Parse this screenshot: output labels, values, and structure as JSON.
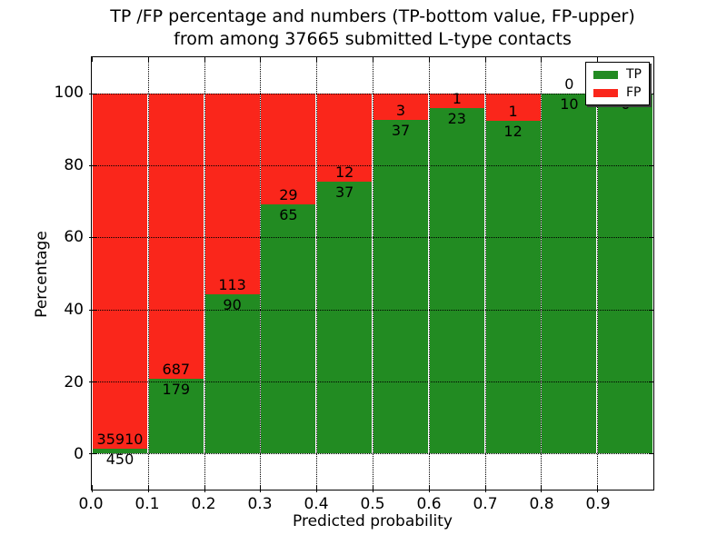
{
  "title": {
    "line1": "TP /FP percentage and numbers (TP-bottom value, FP-upper)",
    "line2": "from among 37665 submitted L-type contacts"
  },
  "axes": {
    "xlabel": "Predicted probability",
    "ylabel": "Percentage"
  },
  "legend": {
    "items": [
      {
        "label": "TP",
        "color": "#228b22"
      },
      {
        "label": "FP",
        "color": "#fa261b"
      }
    ]
  },
  "colors": {
    "tp": "#228b22",
    "fp": "#fa261b",
    "grid": "#000000",
    "background": "#ffffff"
  },
  "chart_data": {
    "type": "bar",
    "stacked": true,
    "title": "TP /FP percentage and numbers (TP-bottom value, FP-upper) from among 37665 submitted L-type contacts",
    "xlabel": "Predicted probability",
    "ylabel": "Percentage",
    "total_contacts": 37665,
    "grid": "dotted",
    "legend_position": "upper right",
    "xlim": [
      0,
      1
    ],
    "ylim": [
      -10,
      110
    ],
    "x_tick_values": [
      0,
      0.1,
      0.2,
      0.3,
      0.4,
      0.5,
      0.6,
      0.7,
      0.8,
      0.9
    ],
    "x_tick_labels": [
      "0.0",
      "0.1",
      "0.2",
      "0.3",
      "0.4",
      "0.5",
      "0.6",
      "0.7",
      "0.8",
      "0.9"
    ],
    "y_tick_values": [
      0,
      20,
      40,
      60,
      80,
      100
    ],
    "y_tick_labels": [
      "0",
      "20",
      "40",
      "60",
      "80",
      "100"
    ],
    "bin_edges": [
      0.0,
      0.1,
      0.2,
      0.3,
      0.4,
      0.5,
      0.6,
      0.7,
      0.8,
      0.9,
      1.0
    ],
    "categories": [
      "0.0-0.1",
      "0.1-0.2",
      "0.2-0.3",
      "0.3-0.4",
      "0.4-0.5",
      "0.5-0.6",
      "0.6-0.7",
      "0.7-0.8",
      "0.8-0.9",
      "0.9-1.0"
    ],
    "series": [
      {
        "name": "TP",
        "color": "#228b22",
        "counts": [
          450,
          179,
          90,
          65,
          37,
          37,
          23,
          12,
          10,
          6
        ],
        "percent": [
          1.24,
          20.67,
          44.33,
          69.15,
          75.51,
          92.5,
          95.83,
          92.31,
          100,
          100
        ]
      },
      {
        "name": "FP",
        "color": "#fa261b",
        "counts": [
          35910,
          687,
          113,
          29,
          12,
          3,
          1,
          1,
          0,
          0
        ],
        "percent": [
          98.76,
          79.33,
          55.67,
          30.85,
          24.49,
          7.5,
          4.17,
          7.69,
          0,
          0
        ]
      }
    ]
  }
}
